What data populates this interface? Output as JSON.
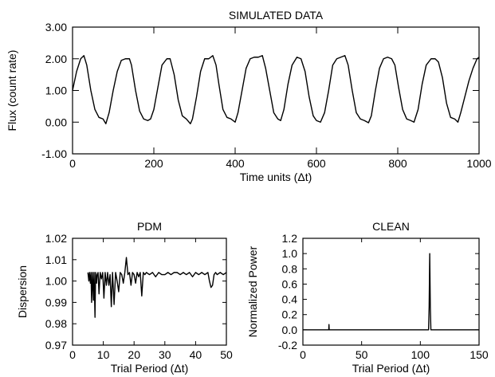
{
  "chart_data": [
    {
      "type": "line",
      "title": "SIMULATED DATA",
      "xlabel": "Time units (Δt)",
      "ylabel": "Flux (count rate)",
      "xlim": [
        0,
        1000
      ],
      "ylim": [
        -1.0,
        3.0
      ],
      "xticks": [
        0,
        200,
        400,
        600,
        800,
        1000
      ],
      "xtick_labels": [
        "0",
        "200",
        "400",
        "600",
        "800",
        "1000"
      ],
      "yticks": [
        -1.0,
        0.0,
        1.0,
        2.0,
        3.0
      ],
      "ytick_labels": [
        "-1.00",
        "0.00",
        "1.00",
        "2.00",
        "3.00"
      ],
      "grid": false,
      "series": [
        {
          "x": [
            0,
            10,
            20,
            28,
            35,
            45,
            55,
            65,
            75,
            82,
            90,
            100,
            110,
            120,
            130,
            140,
            145,
            155,
            165,
            175,
            185,
            192,
            200,
            210,
            220,
            232,
            240,
            250,
            260,
            270,
            280,
            290,
            295,
            305,
            315,
            325,
            335,
            345,
            353,
            360,
            370,
            380,
            390,
            400,
            407,
            417,
            427,
            437,
            447,
            457,
            467,
            475,
            485,
            495,
            505,
            512,
            520,
            530,
            540,
            552,
            562,
            572,
            582,
            592,
            600,
            610,
            620,
            630,
            640,
            650,
            660,
            670,
            678,
            688,
            698,
            708,
            718,
            728,
            735,
            745,
            755,
            765,
            775,
            785,
            793,
            802,
            812,
            822,
            832,
            840,
            850,
            860,
            870,
            882,
            892,
            900,
            910,
            920,
            930,
            940,
            948,
            955,
            965,
            975,
            985,
            995,
            1000
          ],
          "y": [
            1.0,
            1.6,
            2.0,
            2.1,
            1.8,
            1.0,
            0.4,
            0.15,
            0.1,
            -0.05,
            0.3,
            1.0,
            1.6,
            1.95,
            2.0,
            2.0,
            1.8,
            1.0,
            0.35,
            0.1,
            0.05,
            0.1,
            0.4,
            1.1,
            1.8,
            2.0,
            2.0,
            1.5,
            0.7,
            0.2,
            0.1,
            -0.05,
            0.1,
            0.8,
            1.6,
            2.0,
            2.0,
            2.1,
            1.8,
            1.2,
            0.4,
            0.15,
            0.1,
            0.0,
            0.3,
            1.0,
            1.7,
            2.0,
            2.05,
            2.05,
            2.1,
            1.7,
            1.0,
            0.3,
            0.1,
            0.05,
            0.4,
            1.2,
            1.8,
            2.05,
            2.0,
            1.6,
            0.8,
            0.2,
            0.05,
            0.0,
            0.3,
            1.0,
            1.8,
            2.0,
            2.05,
            2.1,
            1.8,
            1.0,
            0.3,
            0.1,
            0.05,
            -0.02,
            0.2,
            1.0,
            1.7,
            2.0,
            2.05,
            2.0,
            1.8,
            1.1,
            0.4,
            0.1,
            0.05,
            0.0,
            0.4,
            1.2,
            1.8,
            2.0,
            2.0,
            1.9,
            1.4,
            0.6,
            0.15,
            0.1,
            0.0,
            0.3,
            0.8,
            1.3,
            1.7,
            2.0,
            2.05
          ]
        }
      ]
    },
    {
      "type": "line",
      "title": "PDM",
      "xlabel": "Trial Period (Δt)",
      "ylabel": "Dispersion",
      "xlim": [
        0,
        50
      ],
      "ylim": [
        0.97,
        1.02
      ],
      "xticks": [
        0,
        10,
        20,
        30,
        40,
        50
      ],
      "xtick_labels": [
        "0",
        "10",
        "20",
        "30",
        "40",
        "50"
      ],
      "yticks": [
        0.97,
        0.98,
        0.99,
        1.0,
        1.01,
        1.02
      ],
      "ytick_labels": [
        "0.97",
        "0.98",
        "0.99",
        "1.00",
        "1.01",
        "1.02"
      ],
      "grid": false,
      "series": [
        {
          "x": [
            5.0,
            5.3,
            5.5,
            5.8,
            6.0,
            6.2,
            6.5,
            6.8,
            7.0,
            7.3,
            7.5,
            7.8,
            8.0,
            8.3,
            8.6,
            9.0,
            9.4,
            9.8,
            10.2,
            10.6,
            11.0,
            11.4,
            11.8,
            12.2,
            12.6,
            13.0,
            13.5,
            14.0,
            14.5,
            15.0,
            15.5,
            16.0,
            16.5,
            17.0,
            17.5,
            18.0,
            18.5,
            19.0,
            19.5,
            20.0,
            20.5,
            21.0,
            21.5,
            22.0,
            22.5,
            23.0,
            23.5,
            24.0,
            25.0,
            26.0,
            27.0,
            28.0,
            29.0,
            30.0,
            31.0,
            32.0,
            33.0,
            34.0,
            35.0,
            36.0,
            37.0,
            38.0,
            39.0,
            40.0,
            41.0,
            42.0,
            43.0,
            44.0,
            44.5,
            45.0,
            45.5,
            46.0,
            46.5,
            47.0,
            48.0,
            49.0,
            50.0
          ],
          "y": [
            1.004,
            1.0,
            1.004,
            0.999,
            1.004,
            0.99,
            1.004,
            0.991,
            1.004,
            0.983,
            1.004,
            0.999,
            1.003,
            1.004,
            0.994,
            1.004,
            1.001,
            1.004,
            0.992,
            1.004,
            0.998,
            1.004,
            0.998,
            1.003,
            0.988,
            1.004,
            0.989,
            1.004,
            1.0,
            0.995,
            1.004,
            1.003,
            0.999,
            1.004,
            1.011,
            1.003,
            1.004,
            0.998,
            1.004,
            1.003,
            0.999,
            1.004,
            1.002,
            1.004,
            0.993,
            1.004,
            1.003,
            1.004,
            1.003,
            1.004,
            1.002,
            1.004,
            1.003,
            1.003,
            1.004,
            1.003,
            1.004,
            1.004,
            1.003,
            1.004,
            1.003,
            1.004,
            1.002,
            1.004,
            1.003,
            1.004,
            1.003,
            1.004,
            1.0,
            0.997,
            0.998,
            1.003,
            1.004,
            1.003,
            1.004,
            1.003,
            1.004
          ]
        }
      ]
    },
    {
      "type": "line",
      "title": "CLEAN",
      "xlabel": "Trial Period (Δt)",
      "ylabel": "Normalized Power",
      "xlim": [
        0,
        150
      ],
      "ylim": [
        -0.2,
        1.2
      ],
      "xticks": [
        0,
        50,
        100,
        150
      ],
      "xtick_labels": [
        "0",
        "50",
        "100",
        "150"
      ],
      "yticks": [
        -0.2,
        0.0,
        0.2,
        0.4,
        0.6,
        0.8,
        1.0,
        1.2
      ],
      "ytick_labels": [
        "-0.2",
        "0.0",
        "0.2",
        "0.4",
        "0.6",
        "0.8",
        "1.0",
        "1.2"
      ],
      "grid": false,
      "series": [
        {
          "x": [
            0,
            22.0,
            22.2,
            22.4,
            107.0,
            107.5,
            108.0,
            108.5,
            109.0,
            150
          ],
          "y": [
            0,
            0,
            0.07,
            0,
            0,
            0.3,
            1.0,
            0.3,
            0,
            0
          ]
        }
      ]
    }
  ]
}
